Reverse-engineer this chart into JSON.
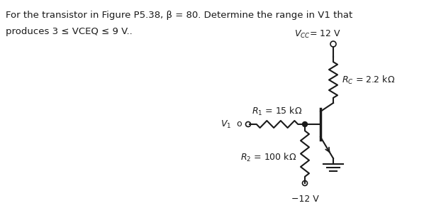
{
  "title_line1": "For the transistor in Figure P5.38, β = 80. Determine the range in V1 that",
  "title_line2": "produces 3 ≤ VCEQ ≤ 9 V..",
  "bg_color": "#ffffff",
  "text_color": "#1a1a1a",
  "vcc_label": "V",
  "vcc_sub": "CC",
  "vcc_rest": " = 12 V",
  "rc_label": "R",
  "rc_sub": "C",
  "rc_rest": " = 2.2 kΩ",
  "r1_label": "R",
  "r1_sub": "1",
  "r1_rest": " = 15 kΩ",
  "r2_label": "R",
  "r2_sub": "2",
  "r2_rest": " = 100 kΩ",
  "v1_label": "V",
  "v1_sub": "1",
  "vneg_label": "−12 V",
  "fig_width": 5.98,
  "fig_height": 3.0,
  "dpi": 100
}
